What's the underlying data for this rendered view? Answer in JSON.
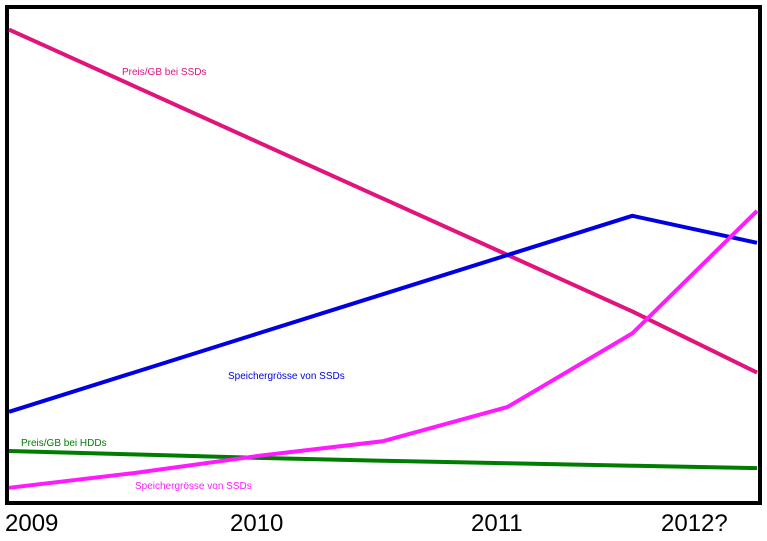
{
  "chart_data": {
    "type": "line",
    "title": "",
    "xlabel": "",
    "ylabel": "",
    "categories": [
      "2009",
      "2010",
      "2011",
      "2012?"
    ],
    "x": [
      2009,
      2009.5,
      2010,
      2010.5,
      2011,
      2011.5,
      2012
    ],
    "ylim": [
      0,
      100
    ],
    "grid": false,
    "legend": "inline",
    "series": [
      {
        "name": "Preis/GB bei SSDs",
        "color": "#e0147c",
        "values": [
          96,
          84.5,
          73,
          61.5,
          50,
          38.5,
          26
        ]
      },
      {
        "name": "Speichergrösse von SSDs",
        "color": "#0000e0",
        "values": [
          18,
          26,
          34,
          42,
          50,
          58,
          52.5
        ]
      },
      {
        "name": "Preis/GB bei HDDs",
        "color": "#007d00",
        "values": [
          10,
          9.3,
          8.6,
          8,
          7.5,
          7,
          6.5
        ]
      },
      {
        "name": "Speichergrösse von SSDs",
        "color": "#ff1aff",
        "values": [
          2.5,
          5.5,
          9,
          12,
          19,
          34,
          59
        ]
      }
    ],
    "series_label_positions_note": ""
  }
}
